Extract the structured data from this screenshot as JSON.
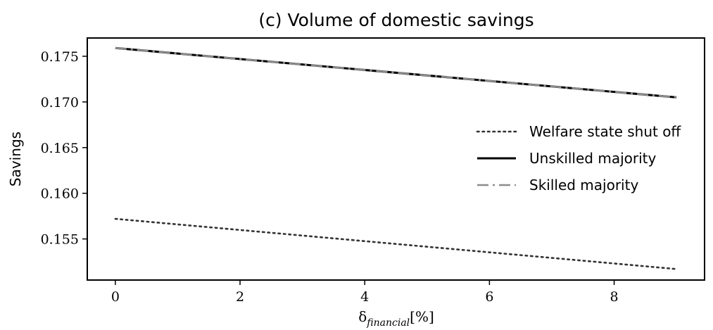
{
  "chart_data": {
    "type": "line",
    "title": "(c) Volume of domestic savings",
    "xlabel": {
      "symbol": "δ",
      "subscript": "financial",
      "unit": "[%]"
    },
    "ylabel": "Savings",
    "xlim": [
      -0.45,
      9.45
    ],
    "ylim": [
      0.1505,
      0.177
    ],
    "xticks": [
      0,
      2,
      4,
      6,
      8
    ],
    "xtick_labels": [
      "0",
      "2",
      "4",
      "6",
      "8"
    ],
    "yticks": [
      0.155,
      0.16,
      0.165,
      0.17,
      0.175
    ],
    "ytick_labels": [
      "0.155",
      "0.160",
      "0.165",
      "0.170",
      "0.175"
    ],
    "grid": false,
    "legend_position": "center-right",
    "series": [
      {
        "name": "Welfare state shut off",
        "style": "dotted",
        "color": "#333333",
        "x": [
          0,
          9
        ],
        "y": [
          0.1572,
          0.1517
        ]
      },
      {
        "name": "Unskilled majority",
        "style": "solid",
        "color": "#000000",
        "x": [
          0,
          9
        ],
        "y": [
          0.1759,
          0.1705
        ]
      },
      {
        "name": "Skilled majority",
        "style": "dashdot",
        "color": "#8c8c8c",
        "x": [
          0,
          9
        ],
        "y": [
          0.1759,
          0.1705
        ]
      }
    ]
  }
}
